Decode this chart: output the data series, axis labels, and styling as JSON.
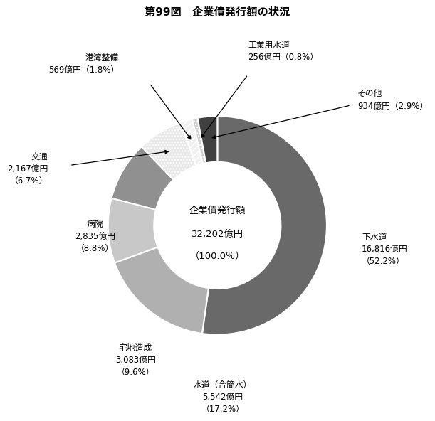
{
  "title": "第99図　企業債発行額の状況",
  "center_text_line1": "企業債発行額",
  "center_text_line2": "32,202億円",
  "center_text_line3": "（100.0％）",
  "slices": [
    {
      "label": "下水道",
      "value": 16816,
      "pct": 52.2,
      "color": "#696969",
      "hatch": null
    },
    {
      "label": "水道（合簡水）",
      "value": 5542,
      "pct": 17.2,
      "color": "#b0b0b0",
      "hatch": null
    },
    {
      "label": "宅地造成",
      "value": 3083,
      "pct": 9.6,
      "color": "#c8c8c8",
      "hatch": null
    },
    {
      "label": "病院",
      "value": 2835,
      "pct": 8.8,
      "color": "#909090",
      "hatch": null
    },
    {
      "label": "交通",
      "value": 2167,
      "pct": 6.7,
      "color": "#e8e8e8",
      "hatch": "...."
    },
    {
      "label": "港湾整備",
      "value": 569,
      "pct": 1.8,
      "color": "#f0f0f0",
      "hatch": "////"
    },
    {
      "label": "工業用水道",
      "value": 256,
      "pct": 0.8,
      "color": "#d0d0d0",
      "hatch": "...."
    },
    {
      "label": "その他",
      "value": 934,
      "pct": 2.9,
      "color": "#404040",
      "hatch": null
    }
  ]
}
